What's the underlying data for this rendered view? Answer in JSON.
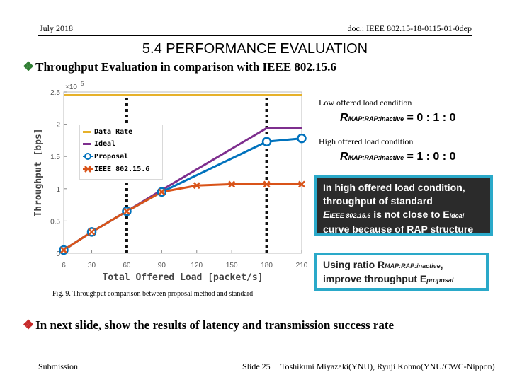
{
  "header": {
    "date": "July 2018",
    "doc_id": "doc.: IEEE 802.15-18-0115-01-0dep"
  },
  "title": "5.4  PERFORMANCE EVALUATION",
  "bullets": [
    "Throughput Evaluation in comparison with IEEE 802.15.6",
    "In next slide, show the results of latency and transmission success rate"
  ],
  "figure_caption": "Fig. 9. Throughput comparison between proposal method and standard",
  "callouts": {
    "low": {
      "title": "Low offered load condition",
      "formula_main": "R",
      "formula_sub": "MAP:RAP:inactive",
      "formula_value": " = 0 : 1 : 0"
    },
    "high": {
      "title": "High offered load condition",
      "formula_main": "R",
      "formula_sub": "MAP:RAP:inactive",
      "formula_value": " = 1 : 0 : 0"
    },
    "note1": {
      "line1": "In high offered load condition,",
      "line2": "throughput of standard",
      "line3_a": "E",
      "line3_sub_a": "IEEE 802.15.6",
      "line3_b": " is not close to E",
      "line3_sub_b": "ideal",
      "line4": "curve because of RAP structure"
    },
    "note2": {
      "line1_a": "Using ratio R",
      "line1_sub": "MAP:RAP:inactive",
      "line1_b": ",",
      "line2_a": "improve throughput E",
      "line2_sub": "proposal"
    }
  },
  "footer": {
    "left": "Submission",
    "slide": "Slide 25",
    "right": "Toshikuni Miyazaki(YNU), Ryuji Kohno(YNU/CWC-Nippon)"
  },
  "colors": {
    "data_rate": "#e6b12a",
    "ideal": "#7e2f8e",
    "proposal": "#0072bd",
    "ieee": "#d95319"
  },
  "chart_data": {
    "type": "line",
    "xlabel": "Total Offered Load [packet/s]",
    "ylabel": "Throughput [bps]",
    "y_multiplier_label": "×10",
    "y_multiplier_exp": "5",
    "x_ticks": [
      6,
      30,
      60,
      90,
      120,
      150,
      180,
      210
    ],
    "y_ticks": [
      0,
      0.5,
      1,
      1.5,
      2,
      2.5
    ],
    "y_tick_labels": [
      "0",
      "0.5",
      "1",
      "1.5",
      "2",
      "2.5"
    ],
    "xlim": [
      6,
      210
    ],
    "ylim": [
      0,
      2.5
    ],
    "vertical_dashed_lines": [
      60,
      180
    ],
    "series": [
      {
        "name": "Data Rate",
        "color": "#e6b12a",
        "marker": "none",
        "x": [
          6,
          210
        ],
        "y": [
          2.45,
          2.45
        ]
      },
      {
        "name": "Ideal",
        "color": "#7e2f8e",
        "marker": "none",
        "x": [
          6,
          30,
          60,
          90,
          120,
          150,
          180,
          190,
          210
        ],
        "y": [
          0.05,
          0.33,
          0.65,
          0.98,
          1.3,
          1.62,
          1.94,
          1.94,
          1.94
        ]
      },
      {
        "name": "Proposal",
        "color": "#0072bd",
        "marker": "circle",
        "x": [
          6,
          30,
          60,
          90,
          180,
          210
        ],
        "y": [
          0.05,
          0.33,
          0.65,
          0.95,
          1.73,
          1.78
        ]
      },
      {
        "name": "IEEE 802.15.6",
        "color": "#d95319",
        "marker": "x",
        "x": [
          6,
          30,
          60,
          90,
          120,
          150,
          180,
          210
        ],
        "y": [
          0.05,
          0.33,
          0.65,
          0.95,
          1.05,
          1.07,
          1.07,
          1.07
        ]
      }
    ]
  }
}
